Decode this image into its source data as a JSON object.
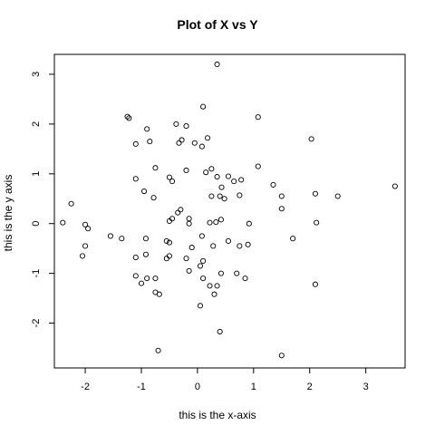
{
  "chart_data": {
    "type": "scatter",
    "title": "Plot of X vs Y",
    "xlabel": "this is the x-axis",
    "ylabel": "this is the y axis",
    "xlim": [
      -2.55,
      3.7
    ],
    "ylim": [
      -2.9,
      3.4
    ],
    "xticks": [
      -2,
      -1,
      0,
      1,
      2,
      3
    ],
    "yticks": [
      -2,
      -1,
      0,
      1,
      2,
      3
    ],
    "grid": false,
    "marker": "open-circle",
    "points": [
      [
        0.35,
        3.2
      ],
      [
        -1.25,
        2.15
      ],
      [
        -1.22,
        2.12
      ],
      [
        0.1,
        2.35
      ],
      [
        1.08,
        2.14
      ],
      [
        -0.38,
        2.0
      ],
      [
        -0.2,
        1.96
      ],
      [
        -0.9,
        1.9
      ],
      [
        -1.1,
        1.6
      ],
      [
        -0.85,
        1.65
      ],
      [
        -0.33,
        1.62
      ],
      [
        -0.28,
        1.68
      ],
      [
        0.08,
        1.55
      ],
      [
        0.18,
        1.72
      ],
      [
        -0.05,
        1.62
      ],
      [
        2.03,
        1.7
      ],
      [
        -0.75,
        1.12
      ],
      [
        -0.2,
        1.07
      ],
      [
        0.15,
        1.03
      ],
      [
        0.25,
        1.1
      ],
      [
        0.35,
        0.94
      ],
      [
        1.08,
        1.15
      ],
      [
        1.35,
        0.78
      ],
      [
        -1.1,
        0.9
      ],
      [
        -0.5,
        0.93
      ],
      [
        -0.45,
        0.85
      ],
      [
        0.55,
        0.95
      ],
      [
        0.65,
        0.85
      ],
      [
        0.78,
        0.88
      ],
      [
        -0.95,
        0.65
      ],
      [
        -0.78,
        0.52
      ],
      [
        0.43,
        0.73
      ],
      [
        0.25,
        0.55
      ],
      [
        0.4,
        0.55
      ],
      [
        0.75,
        0.57
      ],
      [
        1.5,
        0.55
      ],
      [
        2.1,
        0.6
      ],
      [
        2.5,
        0.55
      ],
      [
        3.52,
        0.75
      ],
      [
        -2.25,
        0.4
      ],
      [
        -0.35,
        0.22
      ],
      [
        -0.3,
        0.28
      ],
      [
        0.48,
        0.5
      ],
      [
        1.5,
        0.3
      ],
      [
        -2.4,
        0.02
      ],
      [
        -2.0,
        -0.02
      ],
      [
        -1.95,
        -0.1
      ],
      [
        -0.5,
        0.05
      ],
      [
        -0.45,
        0.1
      ],
      [
        -0.15,
        0.1
      ],
      [
        -0.15,
        0.0
      ],
      [
        0.22,
        0.02
      ],
      [
        0.33,
        0.03
      ],
      [
        0.42,
        0.08
      ],
      [
        0.92,
        0.0
      ],
      [
        2.12,
        0.02
      ],
      [
        -1.55,
        -0.25
      ],
      [
        -1.35,
        -0.3
      ],
      [
        -2.0,
        -0.45
      ],
      [
        -0.92,
        -0.3
      ],
      [
        -0.55,
        -0.35
      ],
      [
        -0.5,
        -0.38
      ],
      [
        -0.1,
        -0.48
      ],
      [
        0.08,
        -0.25
      ],
      [
        0.28,
        -0.45
      ],
      [
        0.55,
        -0.35
      ],
      [
        0.75,
        -0.45
      ],
      [
        0.9,
        -0.42
      ],
      [
        1.7,
        -0.3
      ],
      [
        -2.05,
        -0.65
      ],
      [
        -1.1,
        -0.68
      ],
      [
        -0.92,
        -0.62
      ],
      [
        -0.55,
        -0.7
      ],
      [
        -0.5,
        -0.65
      ],
      [
        -0.2,
        -0.7
      ],
      [
        0.1,
        -0.75
      ],
      [
        -1.1,
        -1.05
      ],
      [
        -1.0,
        -1.2
      ],
      [
        -0.9,
        -1.1
      ],
      [
        -0.75,
        -1.1
      ],
      [
        -0.15,
        -0.95
      ],
      [
        0.05,
        -0.85
      ],
      [
        0.1,
        -1.1
      ],
      [
        0.22,
        -1.25
      ],
      [
        0.42,
        -1.0
      ],
      [
        0.7,
        -1.0
      ],
      [
        0.85,
        -1.1
      ],
      [
        2.1,
        -1.22
      ],
      [
        -0.75,
        -1.38
      ],
      [
        -0.68,
        -1.42
      ],
      [
        0.3,
        -1.42
      ],
      [
        0.35,
        -1.25
      ],
      [
        0.05,
        -1.65
      ],
      [
        0.4,
        -2.17
      ],
      [
        -0.7,
        -2.55
      ],
      [
        1.5,
        -2.65
      ]
    ]
  }
}
